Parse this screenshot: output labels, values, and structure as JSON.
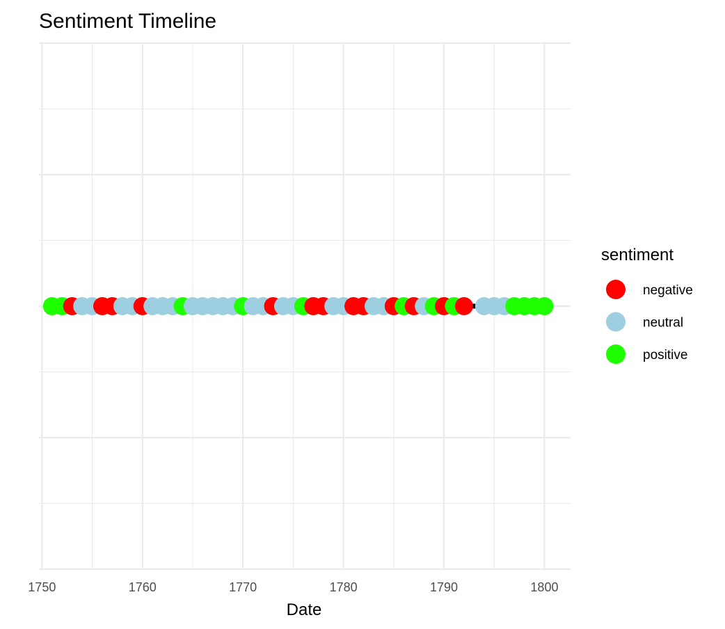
{
  "chart_data": {
    "type": "scatter",
    "title": "Sentiment Timeline",
    "xlabel": "Date",
    "ylabel": "",
    "xlim": [
      1749.7,
      1802.6
    ],
    "x_ticks": [
      "1750",
      "1760",
      "1770",
      "1780",
      "1790",
      "1800"
    ],
    "x_tick_values": [
      1750,
      1760,
      1770,
      1780,
      1790,
      1800
    ],
    "y_value": 0,
    "grid": true,
    "line": {
      "x_start": 1751,
      "x_end": 1800,
      "color": "#000000"
    },
    "legend": {
      "title": "sentiment",
      "placement": "right",
      "entries": [
        {
          "label": "negative",
          "color": "#ff0000"
        },
        {
          "label": "neutral",
          "color": "#9ecfe0"
        },
        {
          "label": "positive",
          "color": "#1eff00"
        }
      ]
    },
    "series": [
      {
        "name": "negative",
        "color": "#ff0000",
        "x": [
          1753,
          1756,
          1757,
          1760,
          1773,
          1777,
          1778,
          1781,
          1782,
          1785,
          1787,
          1790,
          1792
        ]
      },
      {
        "name": "neutral",
        "color": "#9ecfe0",
        "x": [
          1754,
          1755,
          1758,
          1759,
          1761,
          1762,
          1763,
          1765,
          1766,
          1767,
          1768,
          1769,
          1771,
          1772,
          1774,
          1775,
          1779,
          1780,
          1783,
          1784,
          1788,
          1794,
          1795,
          1796
        ]
      },
      {
        "name": "positive",
        "color": "#1eff00",
        "x": [
          1751,
          1752,
          1764,
          1770,
          1776,
          1786,
          1789,
          1791,
          1797,
          1798,
          1799,
          1800
        ]
      }
    ]
  }
}
